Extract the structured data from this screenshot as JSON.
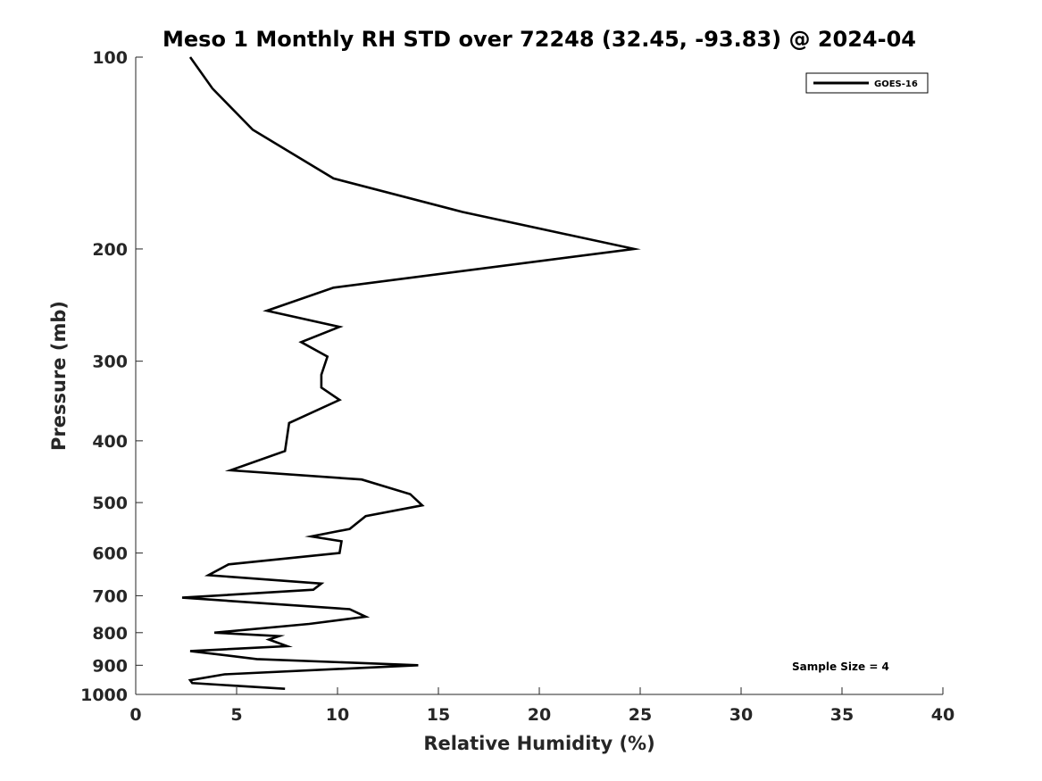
{
  "chart_data": {
    "type": "line",
    "title": "Meso 1 Monthly RH STD over 72248 (32.45, -93.83) @ 2024-04",
    "xlabel": "Relative Humidity (%)",
    "ylabel": "Pressure (mb)",
    "xlim": [
      0,
      40
    ],
    "ylim": [
      1000,
      100
    ],
    "y_scale": "log",
    "y_reversed": true,
    "x_ticks": [
      0,
      5,
      10,
      15,
      20,
      25,
      30,
      35,
      40
    ],
    "x_tick_labels": [
      "0",
      "5",
      "10",
      "15",
      "20",
      "25",
      "30",
      "35",
      "40"
    ],
    "y_ticks": [
      100,
      200,
      300,
      400,
      500,
      600,
      700,
      800,
      900,
      1000
    ],
    "y_tick_labels": [
      "100",
      "200",
      "300",
      "400",
      "500",
      "600",
      "700",
      "800",
      "900",
      "1000"
    ],
    "grid": false,
    "legend_position": "top-right",
    "series": [
      {
        "name": "GOES-16",
        "color": "#000000",
        "x": [
          2.7,
          3.8,
          5.8,
          9.8,
          16.2,
          24.7,
          9.8,
          6.5,
          10.1,
          8.2,
          9.5,
          9.2,
          9.2,
          10.1,
          7.6,
          7.4,
          4.7,
          11.2,
          13.6,
          14.2,
          11.4,
          10.6,
          8.7,
          10.2,
          10.1,
          4.6,
          3.6,
          9.2,
          8.8,
          2.3,
          10.6,
          11.4,
          8.6,
          3.9,
          7.1,
          6.6,
          7.5,
          2.7,
          6.0,
          14.0,
          4.4,
          2.7,
          2.8,
          7.4
        ],
        "y": [
          100,
          112,
          130,
          155,
          175,
          200,
          230,
          250,
          265,
          280,
          295,
          315,
          330,
          345,
          375,
          415,
          445,
          460,
          485,
          505,
          525,
          550,
          565,
          575,
          600,
          625,
          650,
          670,
          685,
          705,
          735,
          755,
          775,
          800,
          810,
          820,
          840,
          855,
          880,
          900,
          930,
          950,
          960,
          980
        ]
      }
    ],
    "annotations": [
      "Sample Size = 4"
    ]
  }
}
